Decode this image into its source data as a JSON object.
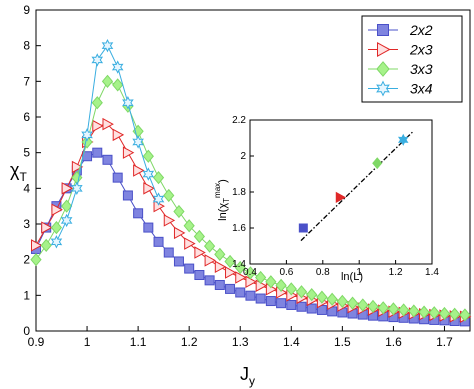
{
  "chart_data": {
    "type": "line",
    "xlabel": {
      "main": "J",
      "sub": "y"
    },
    "ylabel": {
      "main": "χ",
      "sub": "T"
    },
    "xlim": [
      0.9,
      1.75
    ],
    "ylim": [
      0,
      9
    ],
    "xticks": [
      0.9,
      1,
      1.1,
      1.2,
      1.3,
      1.4,
      1.5,
      1.6,
      1.7
    ],
    "yticks": [
      0,
      1,
      2,
      3,
      4,
      5,
      6,
      7,
      8,
      9
    ],
    "legend": "upper right",
    "series": [
      {
        "name": "2x2",
        "marker": "square",
        "color": "#7f84e0",
        "edge": "#4a50c8",
        "x": [
          0.9,
          0.92,
          0.94,
          0.96,
          0.98,
          1.0,
          1.02,
          1.04,
          1.06,
          1.08,
          1.1,
          1.12,
          1.14,
          1.16,
          1.18,
          1.2,
          1.22,
          1.24,
          1.26,
          1.28,
          1.3,
          1.32,
          1.34,
          1.36,
          1.38,
          1.4,
          1.42,
          1.44,
          1.46,
          1.48,
          1.5,
          1.52,
          1.54,
          1.56,
          1.58,
          1.6,
          1.62,
          1.64,
          1.66,
          1.68,
          1.7,
          1.72,
          1.74
        ],
        "values": [
          2.3,
          2.9,
          3.5,
          4.0,
          4.5,
          4.9,
          5.0,
          4.8,
          4.3,
          3.8,
          3.3,
          2.9,
          2.5,
          2.2,
          1.95,
          1.75,
          1.57,
          1.42,
          1.29,
          1.18,
          1.08,
          0.99,
          0.91,
          0.84,
          0.78,
          0.73,
          0.68,
          0.63,
          0.59,
          0.55,
          0.52,
          0.49,
          0.46,
          0.43,
          0.41,
          0.39,
          0.37,
          0.35,
          0.33,
          0.31,
          0.3,
          0.28,
          0.27
        ]
      },
      {
        "name": "2x3",
        "marker": "triangle",
        "color": "#ffe0e0",
        "edge": "#e02828",
        "x": [
          0.9,
          0.92,
          0.94,
          0.96,
          0.98,
          1.0,
          1.02,
          1.04,
          1.06,
          1.08,
          1.1,
          1.12,
          1.14,
          1.16,
          1.18,
          1.2,
          1.22,
          1.24,
          1.26,
          1.28,
          1.3,
          1.32,
          1.34,
          1.36,
          1.38,
          1.4,
          1.42,
          1.44,
          1.46,
          1.48,
          1.5,
          1.52,
          1.54,
          1.56,
          1.58,
          1.6,
          1.62,
          1.64,
          1.66,
          1.68,
          1.7,
          1.72,
          1.74
        ],
        "values": [
          2.4,
          2.9,
          3.4,
          4.0,
          4.6,
          5.3,
          5.75,
          5.8,
          5.5,
          5.0,
          4.5,
          4.0,
          3.5,
          3.1,
          2.75,
          2.45,
          2.2,
          1.98,
          1.8,
          1.64,
          1.5,
          1.38,
          1.27,
          1.17,
          1.08,
          1.0,
          0.93,
          0.87,
          0.81,
          0.76,
          0.71,
          0.67,
          0.63,
          0.6,
          0.57,
          0.54,
          0.51,
          0.49,
          0.47,
          0.45,
          0.43,
          0.41,
          0.4
        ]
      },
      {
        "name": "3x3",
        "marker": "diamond",
        "color": "#a6f28a",
        "edge": "#7fd866",
        "x": [
          0.9,
          0.92,
          0.94,
          0.96,
          0.98,
          1.0,
          1.02,
          1.04,
          1.06,
          1.08,
          1.1,
          1.12,
          1.14,
          1.16,
          1.18,
          1.2,
          1.22,
          1.24,
          1.26,
          1.28,
          1.3,
          1.32,
          1.34,
          1.36,
          1.38,
          1.4,
          1.42,
          1.44,
          1.46,
          1.48,
          1.5,
          1.52,
          1.54,
          1.56,
          1.58,
          1.6,
          1.62,
          1.64,
          1.66,
          1.68,
          1.7,
          1.72,
          1.74
        ],
        "values": [
          2.0,
          2.4,
          2.9,
          3.5,
          4.3,
          5.3,
          6.4,
          7.0,
          6.9,
          6.3,
          5.6,
          4.9,
          4.3,
          3.8,
          3.35,
          2.95,
          2.65,
          2.38,
          2.15,
          1.95,
          1.78,
          1.63,
          1.5,
          1.38,
          1.28,
          1.18,
          1.1,
          1.02,
          0.95,
          0.89,
          0.83,
          0.78,
          0.73,
          0.69,
          0.65,
          0.62,
          0.59,
          0.56,
          0.53,
          0.51,
          0.49,
          0.47,
          0.45
        ]
      },
      {
        "name": "3x4",
        "marker": "star",
        "color": "#e6f6ff",
        "edge": "#3aaee0",
        "x": [
          0.94,
          0.96,
          0.98,
          1.0,
          1.02,
          1.04,
          1.06,
          1.08,
          1.1,
          1.12,
          1.14
        ],
        "values": [
          2.5,
          3.1,
          4.0,
          5.5,
          7.6,
          8.0,
          7.4,
          6.4,
          5.3,
          4.4,
          3.7
        ]
      }
    ],
    "inset": {
      "xlabel": "ln(L)",
      "ylabel": {
        "pre": "ln(χ",
        "sub": "T",
        "sup": "max",
        "post": ")"
      },
      "xlim": [
        0.4,
        1.4
      ],
      "ylim": [
        1.4,
        2.2
      ],
      "xticks": [
        0.4,
        0.6,
        0.8,
        1,
        1.2,
        1.4
      ],
      "yticks": [
        1.4,
        1.6,
        1.8,
        2,
        2.2
      ],
      "x": [
        0.693,
        0.896,
        1.099,
        1.242
      ],
      "values": [
        1.6,
        1.77,
        1.96,
        2.09
      ],
      "fit": {
        "x": [
          0.68,
          1.3
        ],
        "values": [
          1.53,
          2.14
        ]
      }
    }
  }
}
